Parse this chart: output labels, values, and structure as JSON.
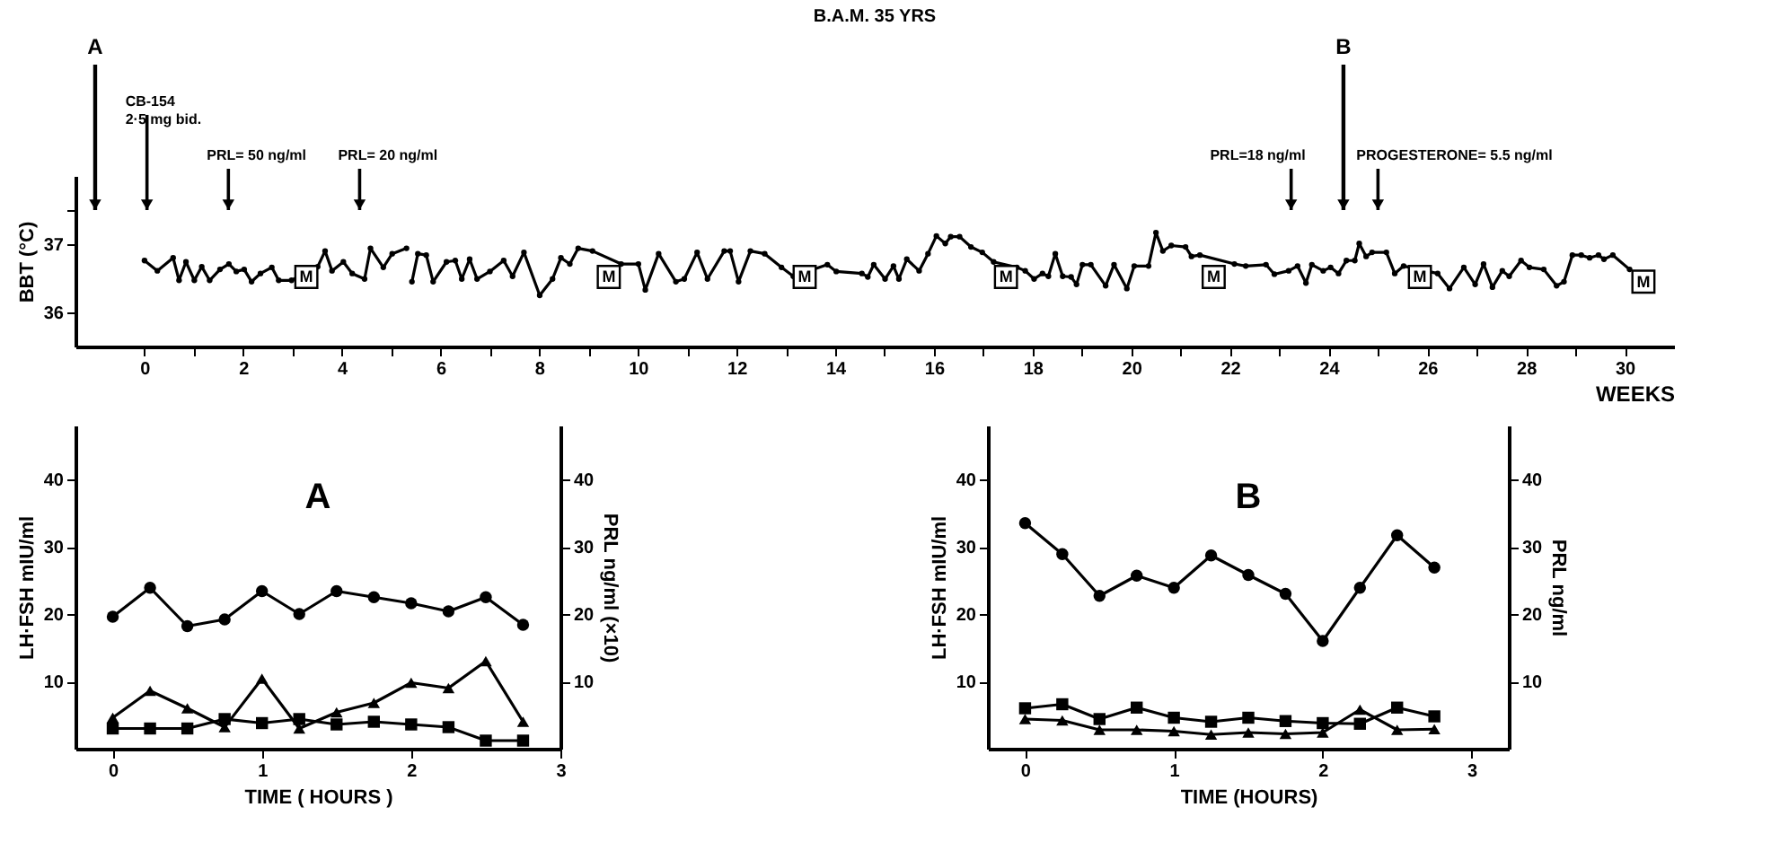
{
  "chart_data": [
    {
      "type": "line",
      "title": "B.A.M. 35 YRS",
      "ylabel": "BBT (°C)",
      "xlabel": "WEEKS",
      "marker": "circle",
      "grid": false,
      "ref_lines": [
        {
          "axis": "x",
          "value": -1,
          "label": "A"
        },
        {
          "axis": "x",
          "value": 0.05,
          "label": "CB-154\n2·5 mg bid."
        },
        {
          "axis": "x",
          "value": 1.7
        },
        {
          "axis": "x",
          "value": 4.36
        },
        {
          "axis": "x",
          "value": 23.24
        },
        {
          "axis": "x",
          "value": 24.3,
          "label": "B"
        },
        {
          "axis": "x",
          "value": 25.0
        }
      ],
      "xlim": [
        -1.4,
        31
      ],
      "xticks": [
        0,
        {
          "value": 1,
          "label": null
        },
        2,
        {
          "value": 3,
          "label": null
        },
        4,
        {
          "value": 5,
          "label": null
        },
        6,
        {
          "value": 7,
          "label": null
        },
        8,
        {
          "value": 9,
          "label": null
        },
        10,
        {
          "value": 11,
          "label": null
        },
        12,
        {
          "value": 13,
          "label": null
        },
        14,
        {
          "value": 15,
          "label": null
        },
        16,
        {
          "value": 17,
          "label": null
        },
        18,
        {
          "value": 19,
          "label": null
        },
        20,
        {
          "value": 21,
          "label": null
        },
        22,
        {
          "value": 23,
          "label": null
        },
        24,
        {
          "value": 25,
          "label": null
        },
        26,
        {
          "value": 27,
          "label": null
        },
        28,
        {
          "value": 29,
          "label": null
        },
        30
      ],
      "ylim": [
        35.5,
        38
      ],
      "yticks": [
        36,
        37,
        {
          "value": 37.5,
          "label": null
        }
      ],
      "x": [
        0,
        0.26,
        0.58,
        0.7,
        0.84,
        1.01,
        1.16,
        1.32,
        1.53,
        1.71,
        1.86,
        2.02,
        2.17,
        2.35,
        2.58,
        2.72,
        2.98,
        3.51,
        3.66,
        3.8,
        4.03,
        4.21,
        4.46,
        4.58,
        4.84,
        5.02,
        5.31,
        5.36,
        5.42,
        5.54,
        5.71,
        5.85,
        6.12,
        6.3,
        6.43,
        6.59,
        6.74,
        7.0,
        7.28,
        7.46,
        7.69,
        8.01,
        8.27,
        8.44,
        8.62,
        8.79,
        9.08,
        9.66,
        10.01,
        10.15,
        10.42,
        10.77,
        10.94,
        11.2,
        11.41,
        11.75,
        11.87,
        12.04,
        12.28,
        12.57,
        12.91,
        13.15,
        13.84,
        14.02,
        14.54,
        14.66,
        14.78,
        15.01,
        15.18,
        15.29,
        15.45,
        15.7,
        15.88,
        16.05,
        16.23,
        16.34,
        16.52,
        16.75,
        16.98,
        17.21,
        17.68,
        17.85,
        18.03,
        18.2,
        18.32,
        18.46,
        18.61,
        18.78,
        18.89,
        19.01,
        19.18,
        19.48,
        19.65,
        19.91,
        20.06,
        20.35,
        20.5,
        20.64,
        20.81,
        21.1,
        21.22,
        21.39,
        22.09,
        22.32,
        22.73,
        22.9,
        23.19,
        23.37,
        23.54,
        23.66,
        23.89,
        24.04,
        24.2,
        24.36,
        24.53,
        24.62,
        24.76,
        24.88,
        25.17,
        25.34,
        25.52,
        26.21,
        26.45,
        26.74,
        26.97,
        27.14,
        27.32,
        27.52,
        27.66,
        27.9,
        28.07,
        28.36,
        28.62,
        28.77,
        28.94,
        29.12,
        29.29,
        29.47,
        29.58,
        29.76,
        30.1
      ],
      "series": [
        {
          "color": "#000000",
          "values": [
            36.76,
            36.61,
            36.8,
            36.47,
            36.74,
            36.47,
            36.67,
            36.47,
            36.63,
            36.71,
            36.6,
            36.63,
            36.45,
            36.57,
            36.66,
            36.47,
            36.47,
            36.67,
            36.9,
            36.61,
            36.74,
            36.57,
            36.49,
            36.94,
            36.66,
            36.86,
            36.94,
            null,
            36.45,
            36.86,
            36.84,
            36.45,
            36.74,
            36.76,
            36.49,
            36.78,
            36.49,
            36.6,
            36.76,
            36.53,
            36.88,
            36.25,
            36.49,
            36.8,
            36.71,
            36.94,
            36.9,
            36.71,
            36.71,
            36.33,
            36.86,
            36.45,
            36.49,
            36.88,
            36.49,
            36.9,
            36.9,
            36.45,
            36.9,
            36.86,
            36.66,
            36.53,
            36.7,
            36.6,
            36.57,
            36.52,
            36.7,
            36.49,
            36.68,
            36.49,
            36.78,
            36.61,
            36.86,
            37.12,
            37.01,
            37.11,
            37.11,
            36.96,
            36.88,
            36.74,
            36.66,
            36.61,
            36.49,
            36.57,
            36.53,
            36.86,
            36.53,
            36.52,
            36.41,
            36.7,
            36.7,
            36.39,
            36.7,
            36.35,
            36.68,
            36.68,
            37.17,
            36.9,
            36.98,
            36.96,
            36.82,
            36.84,
            36.71,
            36.68,
            36.7,
            36.56,
            36.61,
            36.68,
            36.43,
            36.7,
            36.61,
            36.66,
            36.57,
            36.76,
            36.76,
            37.01,
            36.82,
            36.88,
            36.88,
            36.57,
            36.68,
            36.57,
            36.35,
            36.66,
            36.41,
            36.71,
            36.37,
            36.61,
            36.53,
            36.76,
            36.66,
            36.63,
            36.39,
            36.45,
            36.84,
            36.84,
            36.8,
            36.84,
            36.78,
            36.84,
            36.63
          ]
        }
      ],
      "annotations": [
        "PRL= 50 ng/ml",
        "PRL= 20 ng/ml",
        "PRL=18 ng/ml",
        "PROGESTERONE= 5.5 ng/ml",
        {
          "text": "M",
          "x": 3.28,
          "y": 36.52
        },
        {
          "text": "M",
          "x": 9.41,
          "y": 36.52
        },
        {
          "text": "M",
          "x": 13.38,
          "y": 36.52
        },
        {
          "text": "M",
          "x": 17.46,
          "y": 36.52
        },
        {
          "text": "M",
          "x": 21.67,
          "y": 36.52
        },
        {
          "text": "M",
          "x": 25.85,
          "y": 36.52
        },
        {
          "text": "M",
          "x": 30.38,
          "y": 36.45
        }
      ]
    },
    {
      "type": "line",
      "title": "A",
      "xlabel": "TIME ( HOURS )",
      "ylabel": "LH·FSH mIU/ml",
      "y2label": "PRL ng/ml (×10)",
      "grid": false,
      "xlim": [
        -0.25,
        3
      ],
      "xticks": [
        0,
        1,
        2,
        3
      ],
      "ylim": [
        0,
        48
      ],
      "yticks": [
        10,
        20,
        30,
        40
      ],
      "y2lim": [
        0,
        48
      ],
      "y2ticks": [
        10,
        20,
        30,
        40
      ],
      "x": [
        0,
        0.25,
        0.5,
        0.75,
        1,
        1.25,
        1.5,
        1.75,
        2,
        2.25,
        2.5,
        2.75
      ],
      "series": [
        {
          "color": "#000000",
          "marker": "triangle",
          "values": [
            4.6,
            8.6,
            6.0,
            3.2,
            10.4,
            3.0,
            5.4,
            6.8,
            9.8,
            9.0,
            13.0,
            4.0
          ]
        },
        {
          "color": "#000000",
          "marker": "square",
          "values": [
            3.0,
            3.0,
            3.0,
            4.4,
            3.8,
            4.4,
            3.6,
            4.0,
            3.6,
            3.2,
            1.2,
            1.2
          ]
        },
        {
          "color": "#000000",
          "marker": "circle",
          "axis": "y2",
          "values": [
            19.6,
            23.9,
            18.2,
            19.2,
            23.4,
            20.0,
            23.4,
            22.5,
            21.6,
            20.4,
            22.5,
            18.4
          ]
        }
      ]
    },
    {
      "type": "line",
      "title": "B",
      "xlabel": "TIME (HOURS)",
      "ylabel": "LH·FSH mIU/ml",
      "y2label": "PRL ng/ml",
      "grid": false,
      "xlim": [
        -0.25,
        3.25
      ],
      "xticks": [
        0,
        1,
        2,
        3
      ],
      "ylim": [
        0,
        48
      ],
      "yticks": [
        10,
        20,
        30,
        40
      ],
      "y2lim": [
        0,
        48
      ],
      "y2ticks": [
        10,
        20,
        30,
        40
      ],
      "x": [
        0,
        0.25,
        0.5,
        0.75,
        1,
        1.25,
        1.5,
        1.75,
        2,
        2.25,
        2.5,
        2.75
      ],
      "series": [
        {
          "color": "#000000",
          "marker": "square",
          "values": [
            6.0,
            6.6,
            4.4,
            6.1,
            4.6,
            4.0,
            4.6,
            4.1,
            3.8,
            3.7,
            6.1,
            4.8
          ]
        },
        {
          "color": "#000000",
          "marker": "triangle",
          "values": [
            4.4,
            4.2,
            2.8,
            2.8,
            2.6,
            2.1,
            2.4,
            2.2,
            2.4,
            5.8,
            2.8,
            2.9
          ]
        },
        {
          "color": "#000000",
          "marker": "circle",
          "axis": "y2",
          "values": [
            33.5,
            28.9,
            22.7,
            25.7,
            23.9,
            28.7,
            25.8,
            23.0,
            16.0,
            23.9,
            31.7,
            26.9
          ]
        }
      ]
    }
  ]
}
